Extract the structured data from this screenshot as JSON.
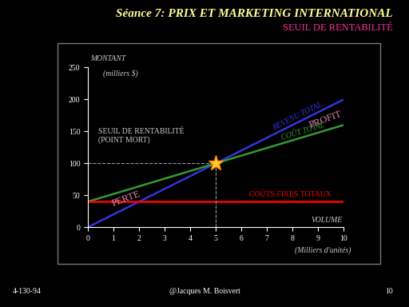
{
  "chart_data": {
    "type": "line",
    "title": "Séance 7: PRIX ET MARKETING INTERNATIONAL",
    "subtitle": "SEUIL DE RENTABILITÉ",
    "y_label": "MONTANT",
    "y_unit": "(milliers $)",
    "x_label": "VOLUME",
    "x_unit": "(Milliers d'unités)",
    "x": [
      0,
      5,
      10
    ],
    "series": [
      {
        "name": "REVENU TOTAL",
        "color": "#3333dd",
        "values": [
          0,
          100,
          200
        ]
      },
      {
        "name": "COÛT TOTAL",
        "color": "#339933",
        "values": [
          40,
          100,
          160
        ]
      },
      {
        "name": "COÛTS FIXES TOTAUX",
        "color": "#ff0000",
        "values": [
          40,
          40,
          40
        ]
      }
    ],
    "break_even": {
      "x": 5,
      "y": 100
    },
    "break_even_label": "SEUIL DE RENTABILITÉ\n(POINT MORT)",
    "loss_label": "PERTE",
    "profit_label": "PROFIT",
    "xlim": [
      0,
      10
    ],
    "xticks": [
      0,
      1,
      2,
      3,
      4,
      5,
      6,
      7,
      8,
      9,
      10
    ],
    "ylim": [
      0,
      250
    ],
    "yticks": [
      0,
      50,
      100,
      150,
      200,
      250
    ],
    "grid": false
  },
  "footer": {
    "left": "4-130-94",
    "center": "@Jacques M. Boisvert",
    "right": "10"
  }
}
